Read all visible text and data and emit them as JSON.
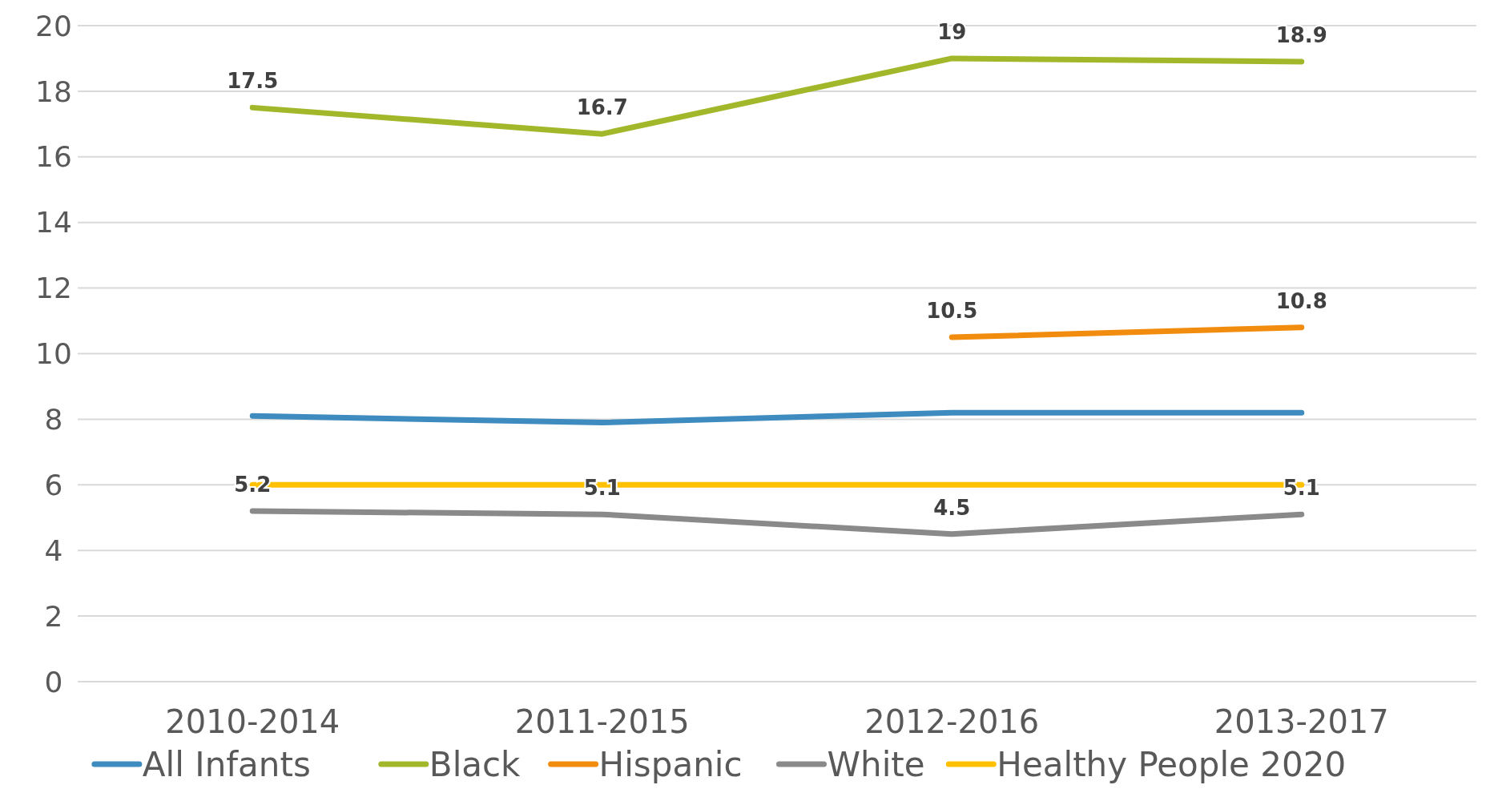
{
  "chart_data": {
    "type": "line",
    "categories": [
      "2010-2014",
      "2011-2015",
      "2012-2016",
      "2013-2017"
    ],
    "series": [
      {
        "name": "All Infants",
        "color": "#3e8bbf",
        "values": [
          8.1,
          7.9,
          8.2,
          8.2
        ]
      },
      {
        "name": "Black",
        "color": "#a2b82a",
        "values": [
          17.5,
          16.7,
          19,
          18.9
        ],
        "value_labels": [
          "17.5",
          "16.7",
          "19",
          "18.9"
        ]
      },
      {
        "name": "Hispanic",
        "color": "#f28c0f",
        "values": [
          null,
          null,
          10.5,
          10.8
        ],
        "value_labels": [
          null,
          null,
          "10.5",
          "10.8"
        ]
      },
      {
        "name": "White",
        "color": "#8a8a8a",
        "values": [
          5.2,
          5.1,
          4.5,
          5.1
        ],
        "value_labels": [
          "5.2",
          "5.1",
          "4.5",
          "5.1"
        ]
      },
      {
        "name": "Healthy People 2020",
        "color": "#ffc000",
        "values": [
          6,
          6,
          6,
          6
        ]
      }
    ],
    "ylim": [
      0,
      20
    ],
    "yticks": [
      0,
      2,
      4,
      6,
      8,
      10,
      12,
      14,
      16,
      18,
      20
    ],
    "grid": "y",
    "legend": "bottom",
    "marker": "none",
    "line_style": "solid"
  }
}
